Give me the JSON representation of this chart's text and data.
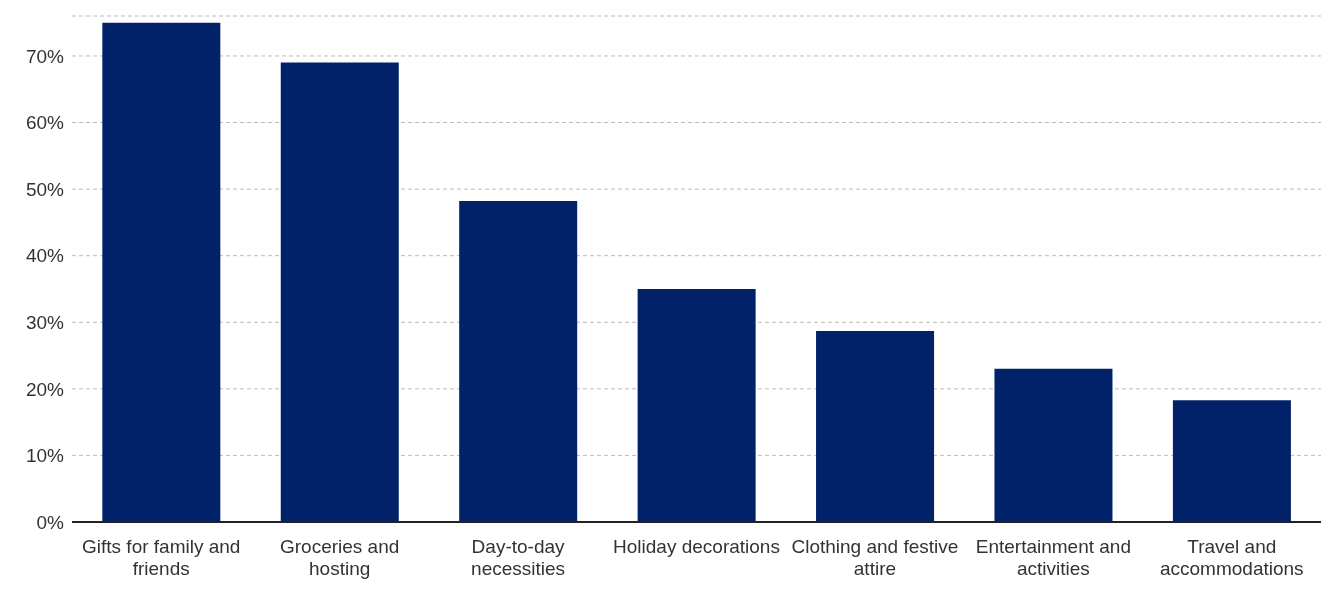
{
  "chart_data": {
    "type": "bar",
    "categories": [
      "Gifts for family and friends",
      "Groceries and hosting",
      "Day-to-day necessities",
      "Holiday decorations",
      "Clothing and festive attire",
      "Entertainment and activities",
      "Travel and accommodations"
    ],
    "values": [
      75,
      69,
      48.2,
      35,
      28.7,
      23,
      18.3
    ],
    "color": "#012169",
    "ylim": [
      0,
      76
    ],
    "yticks": [
      {
        "value": 0,
        "label": "0%"
      },
      {
        "value": 10,
        "label": "10%"
      },
      {
        "value": 20,
        "label": "20%"
      },
      {
        "value": 30,
        "label": "30%"
      },
      {
        "value": 40,
        "label": "40%"
      },
      {
        "value": 50,
        "label": "50%"
      },
      {
        "value": 60,
        "label": "60%"
      },
      {
        "value": 70,
        "label": "70%"
      }
    ],
    "grid": "y"
  }
}
